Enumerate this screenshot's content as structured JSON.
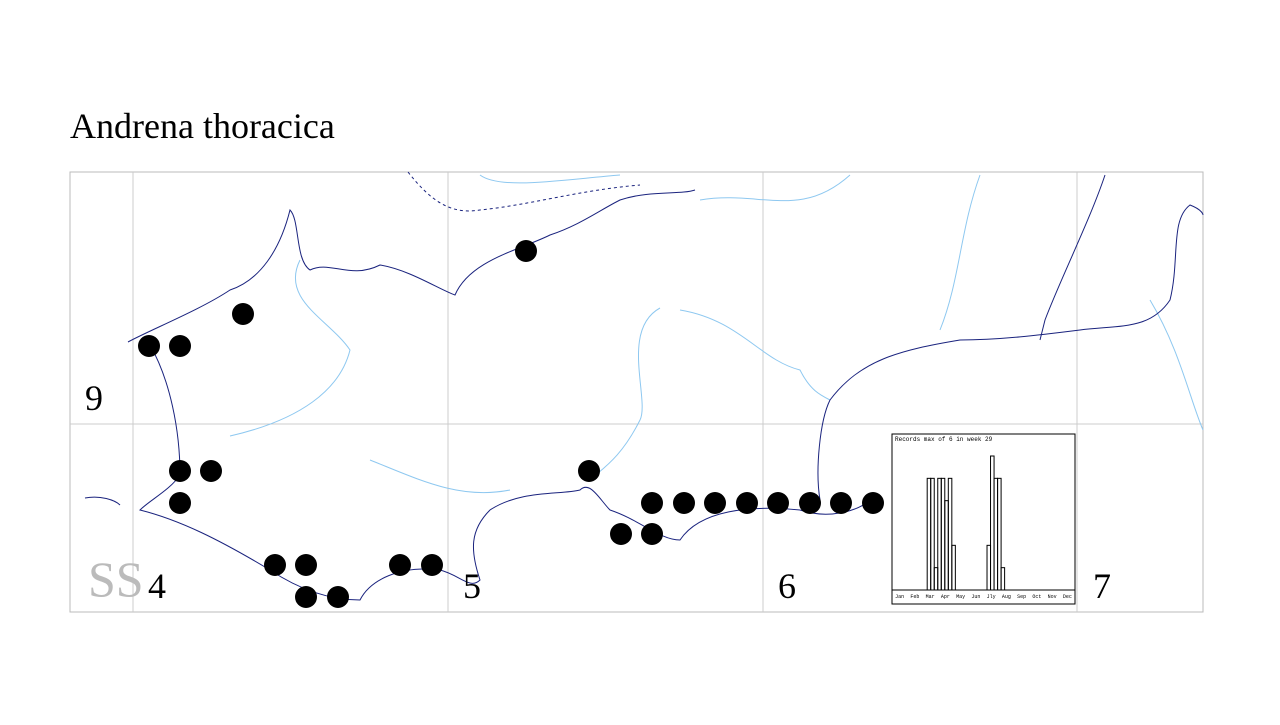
{
  "title": "Andrena thoracica",
  "grid_labels": {
    "square": "SS",
    "cells": [
      "9",
      "4",
      "5",
      "6",
      "7"
    ]
  },
  "inset": {
    "title": "Records max of 6 in week 29",
    "months": [
      "Jan",
      "Feb",
      "Mar",
      "Apr",
      "May",
      "Jun",
      "Jly",
      "Aug",
      "Sep",
      "Oct",
      "Nov",
      "Dec"
    ],
    "weeks": [
      11,
      12,
      13,
      14,
      15,
      16,
      17,
      18,
      28,
      29,
      30,
      31,
      32
    ],
    "counts": [
      5,
      5,
      1,
      5,
      5,
      4,
      5,
      2,
      2,
      6,
      5,
      5,
      1
    ]
  }
}
